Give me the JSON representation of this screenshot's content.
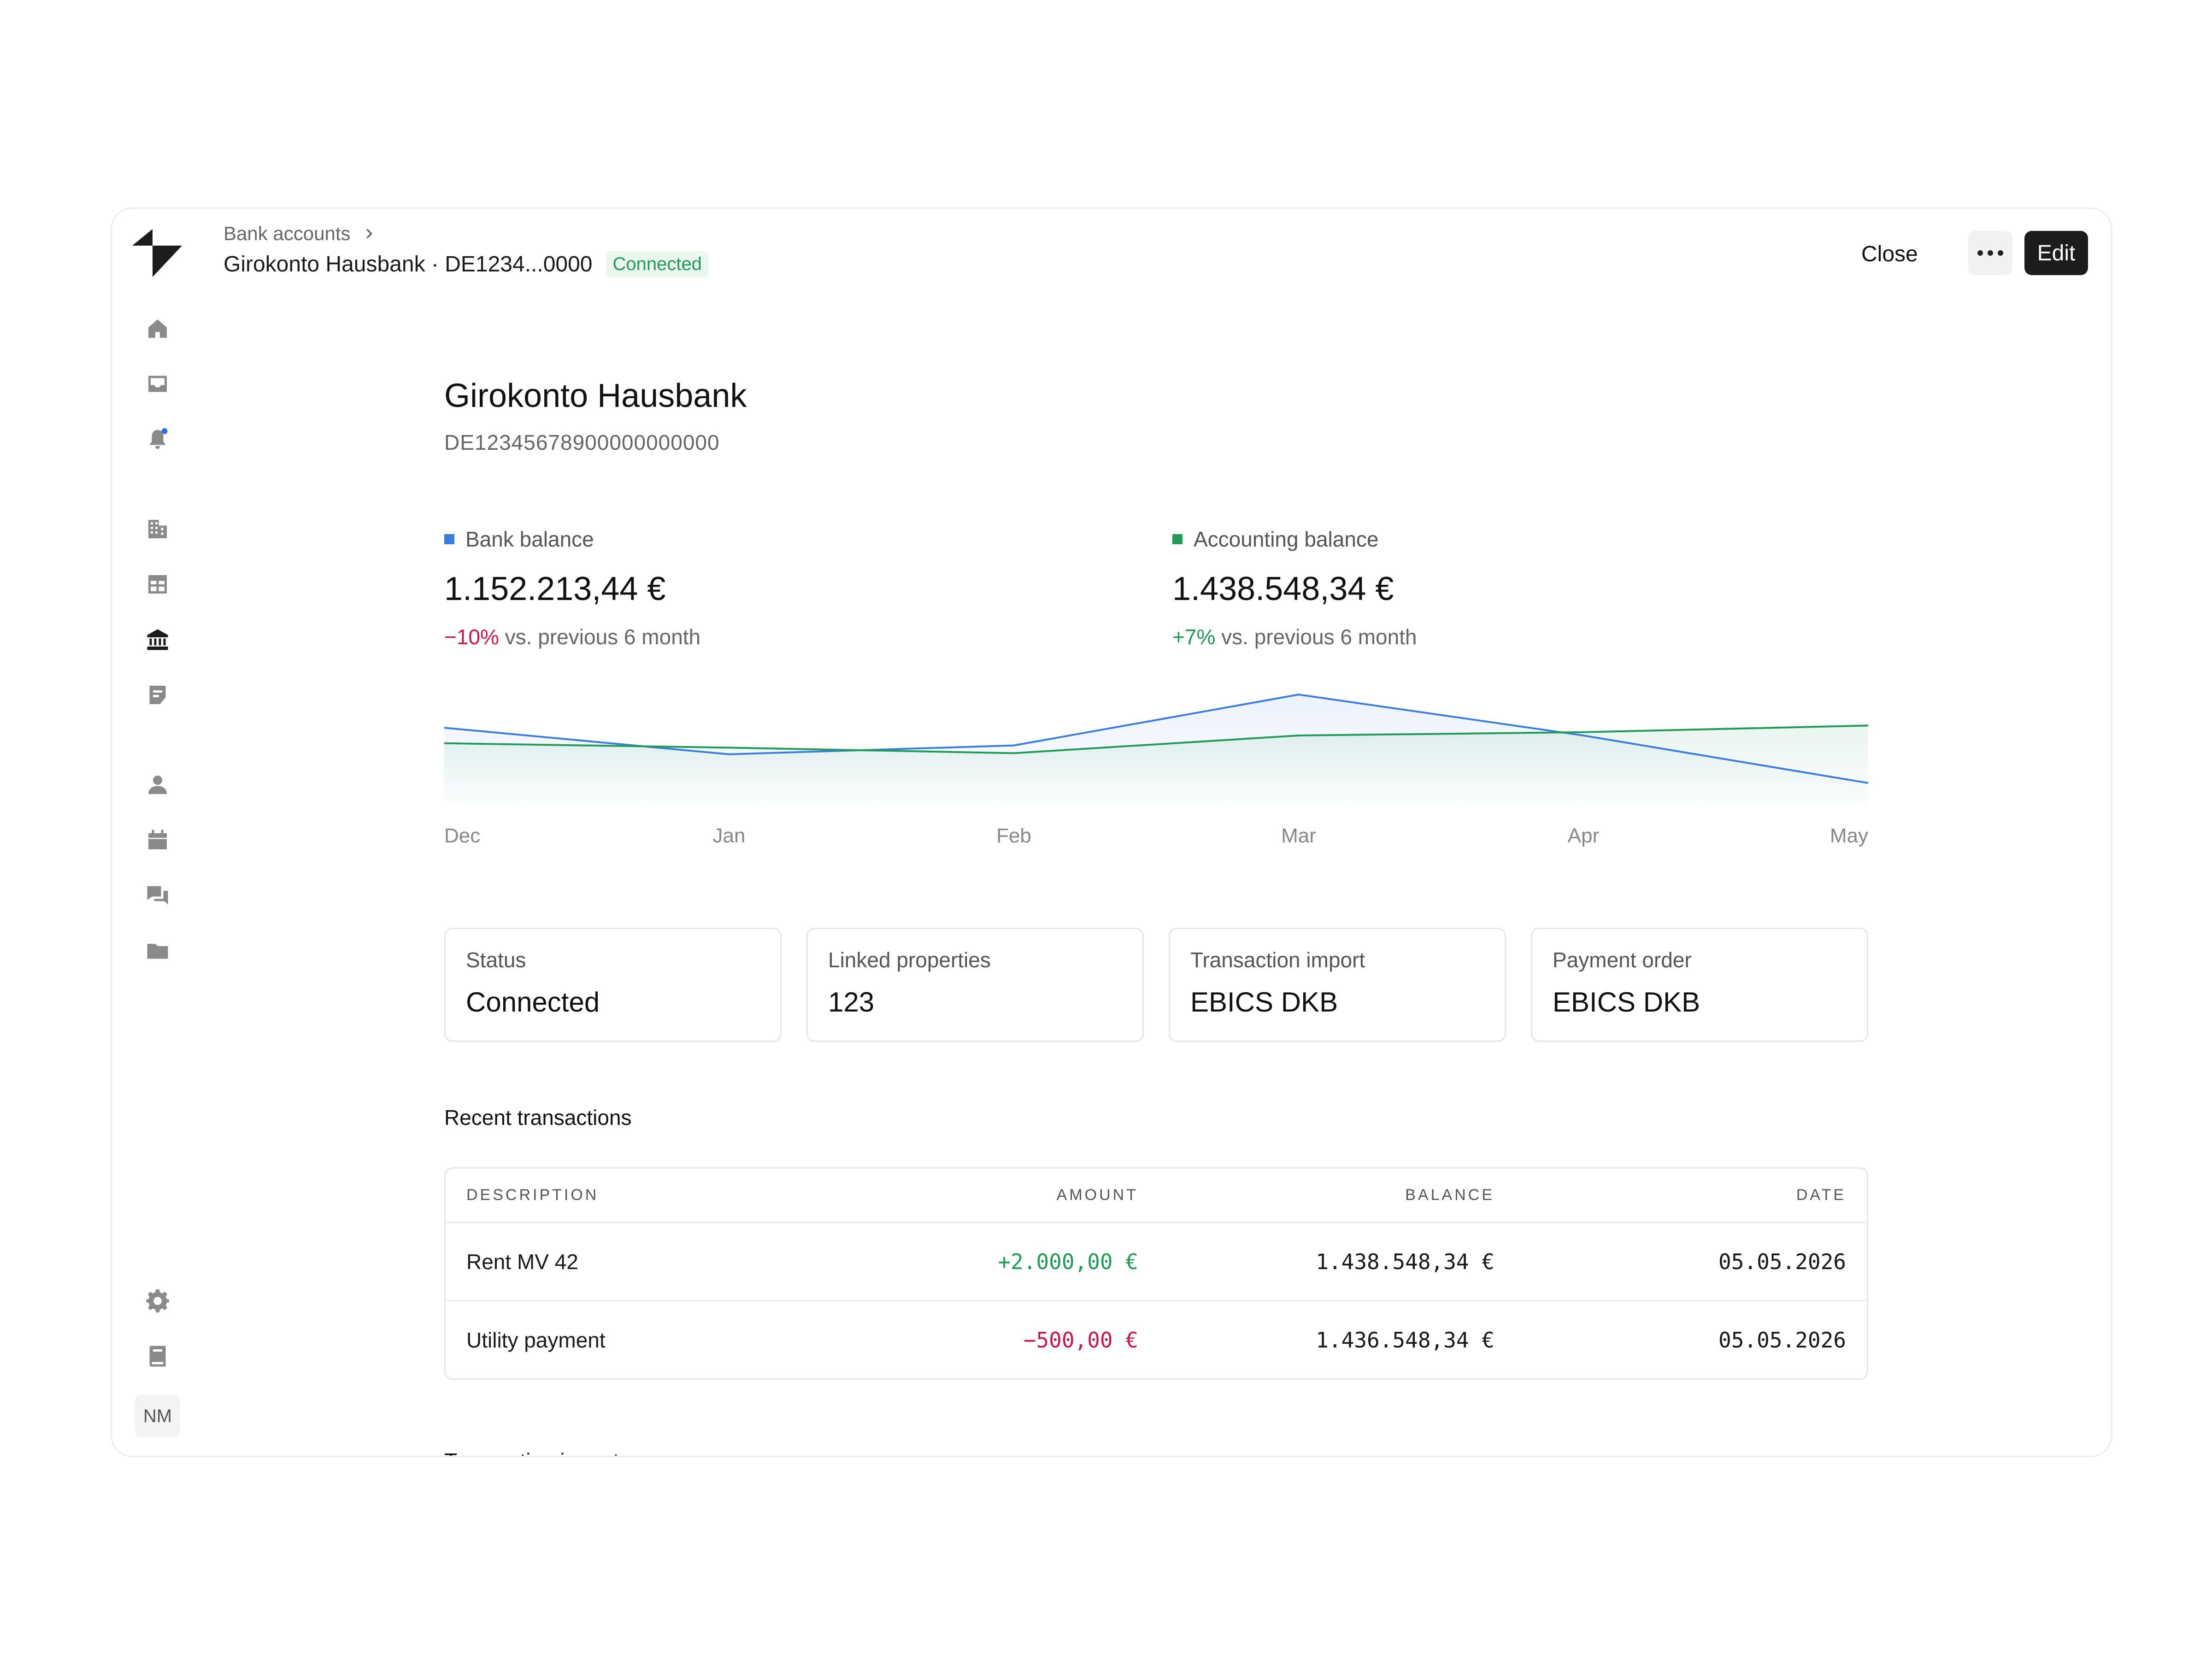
{
  "breadcrumb": {
    "parent": "Bank accounts",
    "current": "Girokonto Hausbank · DE1234...0000",
    "status_badge": "Connected"
  },
  "header_actions": {
    "close_label": "Close",
    "edit_label": "Edit"
  },
  "sidebar": {
    "icons": [
      "home-icon",
      "inbox-icon",
      "bell-icon",
      "building-icon",
      "table-icon",
      "bank-icon",
      "document-icon",
      "person-icon",
      "calendar-icon",
      "chat-icon",
      "folder-icon",
      "gear-icon",
      "book-icon"
    ],
    "active": "bank-icon",
    "avatar_initials": "NM"
  },
  "account": {
    "name": "Girokonto Hausbank",
    "iban": "DE12345678900000000000"
  },
  "balances": {
    "bank": {
      "label": "Bank balance",
      "value": "1.152.213,44 €",
      "change": "−10%",
      "change_suffix": " vs. previous 6 month"
    },
    "accounting": {
      "label": "Accounting balance",
      "value": "1.438.548,34 €",
      "change": "+7%",
      "change_suffix": " vs. previous 6 month"
    }
  },
  "colors": {
    "bank_series": "#3b7ddd",
    "accounting_series": "#1f9a57",
    "negative": "#c8174a",
    "positive": "#1f9a57"
  },
  "chart_data": {
    "type": "area",
    "categories": [
      "Dec",
      "Jan",
      "Feb",
      "Mar",
      "Apr",
      "May"
    ],
    "series": [
      {
        "name": "Bank balance",
        "color": "#3b7ddd",
        "values": [
          0.62,
          0.38,
          0.46,
          0.92,
          0.55,
          0.12
        ]
      },
      {
        "name": "Accounting balance",
        "color": "#1f9a57",
        "values": [
          0.48,
          0.44,
          0.39,
          0.55,
          0.58,
          0.64
        ]
      }
    ],
    "grid": false,
    "legend": "top-left"
  },
  "cards": [
    {
      "label": "Status",
      "value": "Connected"
    },
    {
      "label": "Linked properties",
      "value": "123"
    },
    {
      "label": "Transaction import",
      "value": "EBICS DKB"
    },
    {
      "label": "Payment order",
      "value": "EBICS DKB"
    }
  ],
  "transactions": {
    "title": "Recent transactions",
    "headers": {
      "description": "DESCRIPTION",
      "amount": "AMOUNT",
      "balance": "BALANCE",
      "date": "DATE"
    },
    "rows": [
      {
        "description": "Rent MV 42",
        "amount": "+2.000,00 €",
        "balance": "1.438.548,34 €",
        "date": "05.05.2026"
      },
      {
        "description": "Utility payment",
        "amount": "−500,00 €",
        "balance": "1.436.548,34 €",
        "date": "05.05.2026"
      }
    ]
  },
  "next_section_title": "Transaction import"
}
